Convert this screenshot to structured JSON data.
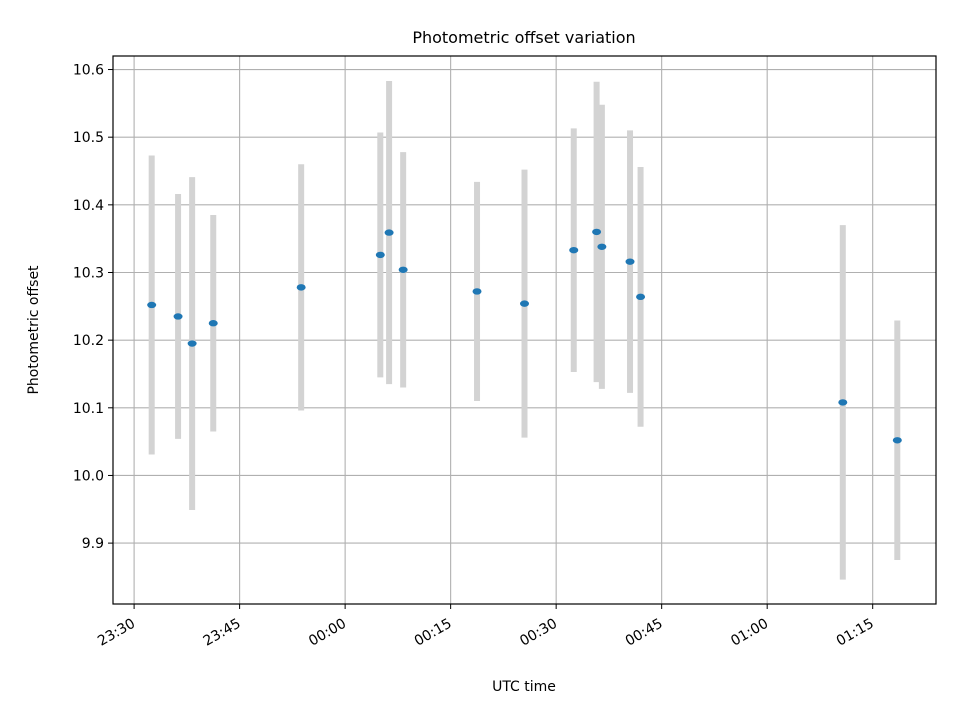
{
  "chart_data": {
    "type": "scatter",
    "title": "Photometric offset variation",
    "xlabel": "UTC time",
    "ylabel": "Photometric offset",
    "grid": true,
    "x_is_time": true,
    "xlim": [
      "23:27",
      "01:24"
    ],
    "ylim": [
      9.81,
      10.62
    ],
    "x_ticks": [
      "23:30",
      "23:45",
      "00:00",
      "00:15",
      "00:30",
      "00:45",
      "01:00",
      "01:15"
    ],
    "y_ticks": [
      9.9,
      10.0,
      10.1,
      10.2,
      10.3,
      10.4,
      10.5,
      10.6
    ],
    "marker_color": "#1f77b4",
    "errorbar_color": "#d3d3d3",
    "points": [
      {
        "x": "23:32:30",
        "y": 10.252,
        "err": 0.221
      },
      {
        "x": "23:36:15",
        "y": 10.235,
        "err": 0.181
      },
      {
        "x": "23:38:15",
        "y": 10.195,
        "err": 0.246
      },
      {
        "x": "23:41:15",
        "y": 10.225,
        "err": 0.16
      },
      {
        "x": "23:53:45",
        "y": 10.278,
        "err": 0.182
      },
      {
        "x": "00:05:00",
        "y": 10.326,
        "err": 0.181
      },
      {
        "x": "00:06:15",
        "y": 10.359,
        "err": 0.224
      },
      {
        "x": "00:08:15",
        "y": 10.304,
        "err": 0.174
      },
      {
        "x": "00:18:45",
        "y": 10.272,
        "err": 0.162
      },
      {
        "x": "00:25:30",
        "y": 10.254,
        "err": 0.198
      },
      {
        "x": "00:32:30",
        "y": 10.333,
        "err": 0.18
      },
      {
        "x": "00:35:45",
        "y": 10.36,
        "err": 0.222
      },
      {
        "x": "00:36:30",
        "y": 10.338,
        "err": 0.21
      },
      {
        "x": "00:40:30",
        "y": 10.316,
        "err": 0.194
      },
      {
        "x": "00:42:00",
        "y": 10.264,
        "err": 0.192
      },
      {
        "x": "01:10:45",
        "y": 10.108,
        "err": 0.262
      },
      {
        "x": "01:18:30",
        "y": 10.052,
        "err": 0.177
      }
    ]
  }
}
